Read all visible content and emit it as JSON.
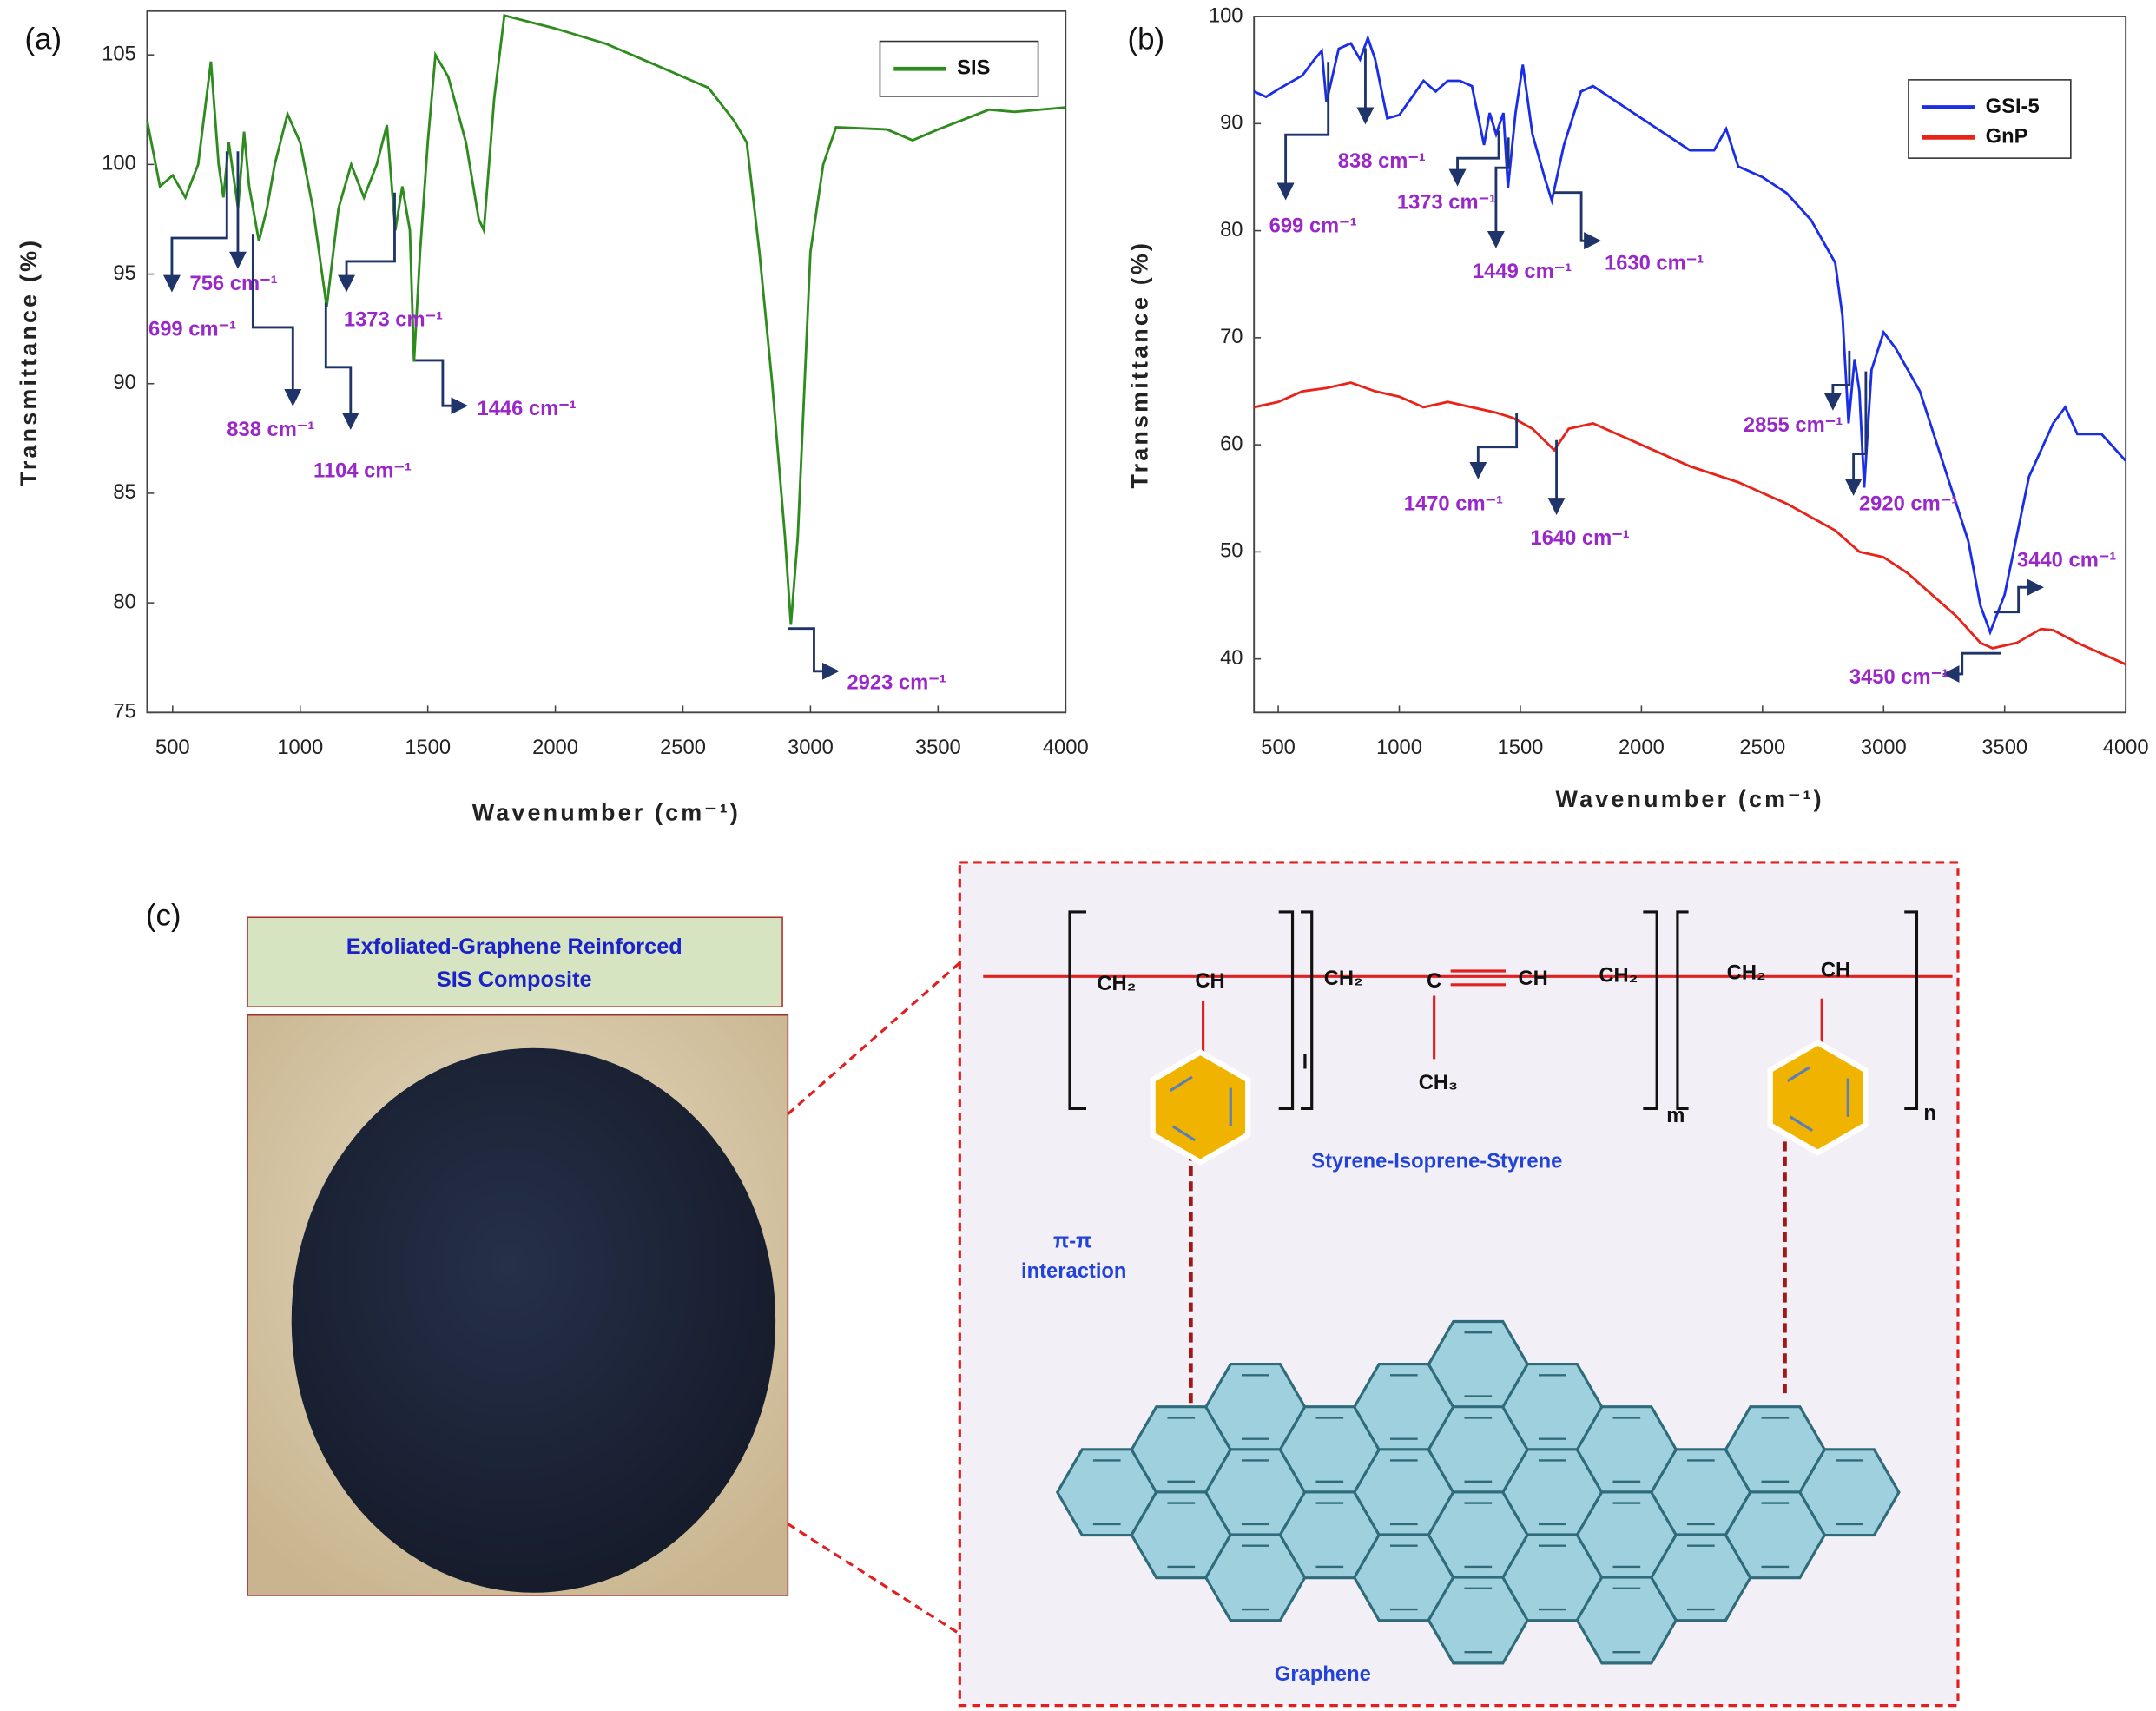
{
  "chart_data": [
    {
      "type": "line",
      "label": "(a)",
      "xlabel": "Wavenumber (cm⁻¹)",
      "ylabel": "Transmittance (%)",
      "xlim": [
        400,
        4000
      ],
      "xticks": [
        500,
        1000,
        1500,
        2000,
        2500,
        3000,
        3500,
        4000
      ],
      "ylim": [
        75,
        107
      ],
      "yticks": [
        75,
        80,
        85,
        90,
        95,
        100,
        105
      ],
      "legend": "top-right",
      "annotation_color": "#9a28c8",
      "arrow_color": "#1f3468",
      "series": [
        {
          "name": "SIS",
          "color": "#2e8b1e",
          "x": [
            400,
            450,
            500,
            550,
            600,
            650,
            680,
            699,
            720,
            756,
            780,
            800,
            838,
            870,
            900,
            950,
            1000,
            1050,
            1104,
            1150,
            1200,
            1250,
            1300,
            1340,
            1373,
            1400,
            1430,
            1446,
            1470,
            1500,
            1530,
            1580,
            1650,
            1700,
            1720,
            1760,
            1800,
            1900,
            2000,
            2200,
            2400,
            2600,
            2700,
            2750,
            2800,
            2850,
            2900,
            2923,
            2950,
            3000,
            3050,
            3100,
            3300,
            3400,
            3500,
            3700,
            3800,
            3900,
            4000
          ],
          "values": [
            102,
            99,
            99.5,
            98.5,
            100,
            104.7,
            100,
            98.5,
            101,
            98,
            101.5,
            99,
            96.5,
            98,
            100,
            102.3,
            101,
            98,
            93.5,
            98,
            100,
            98.5,
            100,
            101.8,
            97,
            99,
            97,
            91,
            96,
            101,
            105,
            104,
            101,
            97.5,
            97,
            103,
            106.8,
            106.5,
            106.2,
            105.5,
            104.5,
            103.5,
            102,
            101,
            96,
            90,
            83,
            79,
            83,
            96,
            100,
            101.7,
            101.6,
            101.1,
            101.6,
            102.5,
            102.4,
            102.5,
            102.6
          ]
        }
      ],
      "annotations": [
        "699 cm⁻¹",
        "756 cm⁻¹",
        "838 cm⁻¹",
        "1104 cm⁻¹",
        "1373 cm⁻¹",
        "1446 cm⁻¹",
        "2923 cm⁻¹"
      ]
    },
    {
      "type": "line",
      "label": "(b)",
      "xlabel": "Wavenumber (cm⁻¹)",
      "ylabel": "Transmittance (%)",
      "xlim": [
        400,
        4000
      ],
      "xticks": [
        500,
        1000,
        1500,
        2000,
        2500,
        3000,
        3500,
        4000
      ],
      "ylim": [
        35,
        100
      ],
      "yticks": [
        40,
        50,
        60,
        70,
        80,
        90,
        100
      ],
      "legend": "top-right",
      "annotation_color": "#9a28c8",
      "arrow_color": "#1f3468",
      "series": [
        {
          "name": "GSI-5",
          "color": "#1a2ee8",
          "x": [
            400,
            450,
            500,
            600,
            650,
            680,
            699,
            750,
            800,
            838,
            870,
            900,
            950,
            1000,
            1100,
            1150,
            1200,
            1250,
            1300,
            1350,
            1373,
            1400,
            1430,
            1449,
            1480,
            1510,
            1550,
            1600,
            1630,
            1680,
            1750,
            1800,
            1900,
            2000,
            2100,
            2200,
            2300,
            2350,
            2400,
            2500,
            2600,
            2700,
            2800,
            2830,
            2855,
            2880,
            2900,
            2920,
            2950,
            3000,
            3050,
            3150,
            3250,
            3350,
            3400,
            3440,
            3500,
            3600,
            3700,
            3750,
            3800,
            3900,
            4000
          ],
          "values": [
            93,
            92.5,
            93.2,
            94.5,
            96,
            96.8,
            92,
            97,
            97.5,
            96,
            98,
            96,
            90.5,
            90.8,
            94,
            93,
            94,
            94,
            93.5,
            88,
            91,
            89,
            91,
            84,
            91,
            95.5,
            89,
            85,
            82.8,
            88,
            93,
            93.5,
            92,
            90.5,
            89,
            87.5,
            87.5,
            89.5,
            86,
            85,
            83.5,
            81,
            77,
            72,
            62,
            68,
            65,
            56,
            67,
            70.5,
            69,
            65,
            58,
            51,
            45,
            42.5,
            46,
            57,
            62,
            63.5,
            61,
            61,
            58.5
          ]
        },
        {
          "name": "GnP",
          "color": "#e8231a",
          "x": [
            400,
            500,
            600,
            700,
            800,
            900,
            1000,
            1100,
            1200,
            1300,
            1400,
            1470,
            1550,
            1640,
            1700,
            1800,
            2000,
            2200,
            2400,
            2600,
            2800,
            2900,
            3000,
            3100,
            3200,
            3300,
            3400,
            3450,
            3550,
            3650,
            3700,
            3800,
            3900,
            4000
          ],
          "values": [
            63.5,
            64,
            65,
            65.3,
            65.8,
            65,
            64.5,
            63.5,
            64,
            63.5,
            63,
            62.5,
            61.5,
            59.5,
            61.5,
            62,
            60,
            58,
            56.5,
            54.5,
            52,
            50,
            49.5,
            48,
            46,
            44,
            41.5,
            41,
            41.5,
            42.8,
            42.7,
            41.5,
            40.5,
            39.5
          ]
        }
      ],
      "annotations": [
        "699 cm⁻¹",
        "838 cm⁻¹",
        "1373 cm⁻¹",
        "1449 cm⁻¹",
        "1630 cm⁻¹",
        "2855 cm⁻¹",
        "2920 cm⁻¹",
        "3440 cm⁻¹",
        "1470 cm⁻¹",
        "1640 cm⁻¹",
        "3450 cm⁻¹"
      ]
    }
  ],
  "panel_c": {
    "label": "(c)",
    "title_lines": [
      "Exfoliated-Graphene Reinforced",
      "SIS Composite"
    ],
    "groups": [
      "CH₂",
      "CH",
      "CH₂",
      "C",
      "CH",
      "CH₂",
      "CH₂",
      "CH",
      "CH₃"
    ],
    "subscripts": [
      "l",
      "m",
      "n"
    ],
    "polymer": "Styrene-Isoprene-Styrene",
    "interaction": [
      "π-π",
      "interaction"
    ],
    "sheet": "Graphene"
  }
}
